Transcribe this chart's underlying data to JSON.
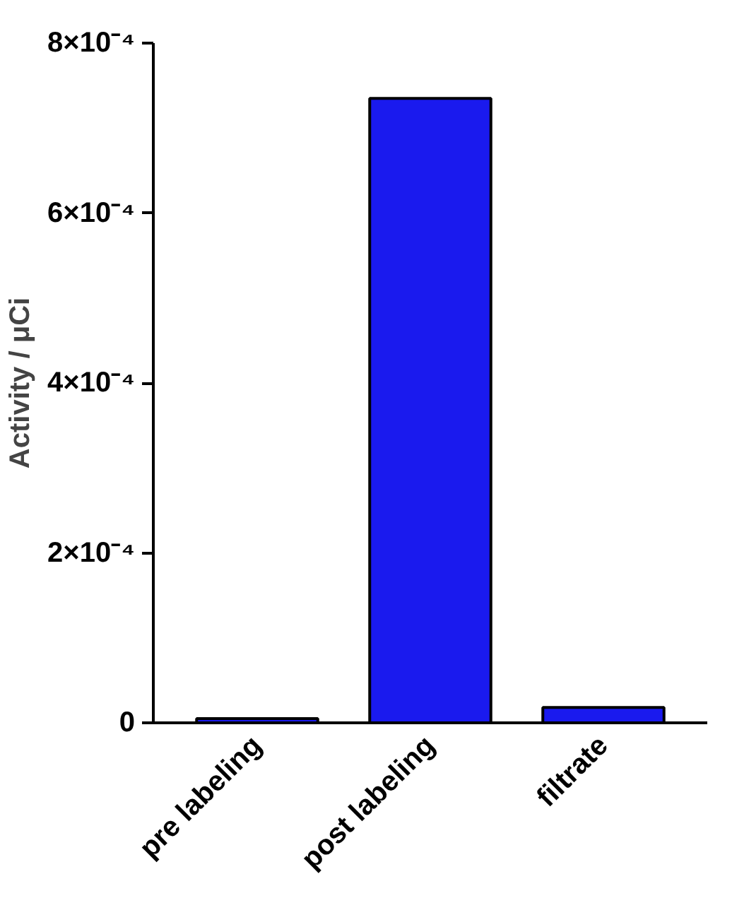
{
  "chart_data": {
    "type": "bar",
    "ylabel": "Activity / μCi",
    "categories": [
      "pre labeling",
      "post labeling",
      "filtrate"
    ],
    "values": [
      5e-06,
      0.000735,
      1.8e-05
    ],
    "color": "#1a1aee",
    "ylim": [
      0,
      0.0008
    ],
    "yticks": [
      {
        "value": 0,
        "label": "0"
      },
      {
        "value": 0.0002,
        "label": "2×10⁻⁴"
      },
      {
        "value": 0.0004,
        "label": "4×10⁻⁴"
      },
      {
        "value": 0.0006,
        "label": "6×10⁻⁴"
      },
      {
        "value": 0.0008,
        "label": "8×10⁻⁴"
      }
    ],
    "grid": false
  }
}
